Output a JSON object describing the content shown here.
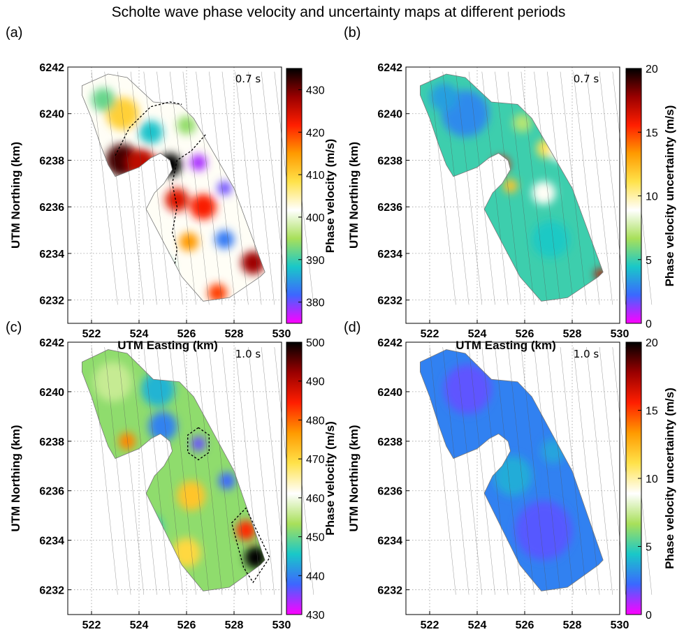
{
  "title": "Scholte wave phase velocity and uncertainty maps at different periods",
  "colors": {
    "velocity_scale": [
      "#ff00ff",
      "#3d66ff",
      "#19c8c8",
      "#a8e05a",
      "#ffffff",
      "#ffe24a",
      "#ff9a00",
      "#ff1e00",
      "#9a0000",
      "#000000"
    ],
    "uncertainty_scale": [
      "#ff00ff",
      "#3a68ff",
      "#19c8c8",
      "#a8e05a",
      "#ffffff",
      "#ffe24a",
      "#ff9a00",
      "#ff1e00",
      "#9a0000",
      "#000000"
    ],
    "grid": "#9a9a9a"
  },
  "chart_data": [
    {
      "type": "heatmap",
      "panel_label": "(a)",
      "period": "0.7 s",
      "xlabel": "UTM Easting (km)",
      "ylabel": "UTM Northing (km)",
      "xlim": [
        521,
        530
      ],
      "ylim": [
        6231,
        6242
      ],
      "xticks": [
        522,
        524,
        526,
        528,
        530
      ],
      "yticks": [
        6232,
        6234,
        6236,
        6238,
        6240,
        6242
      ],
      "colorbar": {
        "label": "Phase velocity (m/s)",
        "range": [
          375,
          435
        ],
        "ticks": [
          380,
          390,
          400,
          410,
          420,
          430
        ]
      },
      "background": 402,
      "blobs": [
        {
          "x": 523.3,
          "y": 6238.0,
          "r": 0.7,
          "v": 432
        },
        {
          "x": 524.1,
          "y": 6237.9,
          "r": 0.6,
          "v": 426
        },
        {
          "x": 525.3,
          "y": 6237.8,
          "r": 0.5,
          "v": 440
        },
        {
          "x": 526.5,
          "y": 6237.9,
          "r": 0.35,
          "v": 378
        },
        {
          "x": 527.6,
          "y": 6236.8,
          "r": 0.3,
          "v": 380
        },
        {
          "x": 526.7,
          "y": 6236.0,
          "r": 0.55,
          "v": 422
        },
        {
          "x": 525.6,
          "y": 6236.3,
          "r": 0.5,
          "v": 424
        },
        {
          "x": 528.8,
          "y": 6233.6,
          "r": 0.5,
          "v": 428
        },
        {
          "x": 527.6,
          "y": 6234.6,
          "r": 0.4,
          "v": 383
        },
        {
          "x": 523.3,
          "y": 6240.0,
          "r": 0.7,
          "v": 410
        },
        {
          "x": 522.5,
          "y": 6240.6,
          "r": 0.5,
          "v": 392
        },
        {
          "x": 524.5,
          "y": 6239.2,
          "r": 0.5,
          "v": 388
        },
        {
          "x": 526.0,
          "y": 6239.5,
          "r": 0.4,
          "v": 394
        },
        {
          "x": 524.8,
          "y": 6233.3,
          "r": 0.6,
          "v": 390
        },
        {
          "x": 527.3,
          "y": 6232.3,
          "r": 0.4,
          "v": 420
        },
        {
          "x": 526.1,
          "y": 6234.5,
          "r": 0.4,
          "v": 415
        }
      ],
      "contours": [
        {
          "closed": false,
          "points": [
            [
              523.0,
              6238.2
            ],
            [
              523.6,
              6239.4
            ],
            [
              524.5,
              6240.3
            ],
            [
              525.3,
              6240.5
            ],
            [
              525.8,
              6240.4
            ]
          ]
        },
        {
          "closed": false,
          "points": [
            [
              526.8,
              6239.1
            ],
            [
              526.2,
              6238.4
            ],
            [
              525.6,
              6238.0
            ],
            [
              525.4,
              6237.0
            ],
            [
              525.6,
              6236.0
            ],
            [
              525.4,
              6234.9
            ],
            [
              525.6,
              6234.2
            ],
            [
              525.5,
              6233.5
            ]
          ]
        }
      ]
    },
    {
      "type": "heatmap",
      "panel_label": "(b)",
      "period": "0.7 s",
      "xlabel": "UTM Easting (km)",
      "ylabel": "UTM Northing (km)",
      "xlim": [
        521,
        530
      ],
      "ylim": [
        6231,
        6242
      ],
      "xticks": [
        522,
        524,
        526,
        528,
        530
      ],
      "yticks": [
        6232,
        6234,
        6236,
        6238,
        6240,
        6242
      ],
      "colorbar": {
        "label": "Phase velocity uncertainty (m/s)",
        "range": [
          0,
          20
        ],
        "ticks": [
          0,
          5,
          10,
          15,
          20
        ]
      },
      "background": 5,
      "blobs": [
        {
          "x": 523.5,
          "y": 6240.0,
          "r": 1.0,
          "v": 3
        },
        {
          "x": 522.6,
          "y": 6240.7,
          "r": 0.6,
          "v": 3.5
        },
        {
          "x": 525.0,
          "y": 6237.8,
          "r": 0.35,
          "v": 16
        },
        {
          "x": 525.4,
          "y": 6236.9,
          "r": 0.3,
          "v": 12
        },
        {
          "x": 526.9,
          "y": 6238.5,
          "r": 0.4,
          "v": 11
        },
        {
          "x": 527.4,
          "y": 6238.3,
          "r": 0.35,
          "v": 9
        },
        {
          "x": 526.8,
          "y": 6236.6,
          "r": 0.5,
          "v": 9
        },
        {
          "x": 529.2,
          "y": 6233.1,
          "r": 0.25,
          "v": 17
        },
        {
          "x": 527.1,
          "y": 6234.6,
          "r": 0.8,
          "v": 4.5
        },
        {
          "x": 525.9,
          "y": 6239.6,
          "r": 0.4,
          "v": 7
        }
      ],
      "contours": []
    },
    {
      "type": "heatmap",
      "panel_label": "(c)",
      "period": "1.0 s",
      "xlabel": "UTM Easting (km)",
      "ylabel": "UTM Northing (km)",
      "xlim": [
        521,
        530
      ],
      "ylim": [
        6231,
        6242
      ],
      "xticks": [
        522,
        524,
        526,
        528,
        530
      ],
      "yticks": [
        6232,
        6234,
        6236,
        6238,
        6240,
        6242
      ],
      "colorbar": {
        "label": "Phase velocity (m/s)",
        "range": [
          430,
          500
        ],
        "ticks": [
          430,
          440,
          450,
          460,
          470,
          480,
          490,
          500
        ]
      },
      "background": 452,
      "blobs": [
        {
          "x": 528.9,
          "y": 6233.3,
          "r": 0.45,
          "v": 500
        },
        {
          "x": 528.5,
          "y": 6234.4,
          "r": 0.4,
          "v": 484
        },
        {
          "x": 526.5,
          "y": 6237.9,
          "r": 0.3,
          "v": 436
        },
        {
          "x": 523.5,
          "y": 6238.0,
          "r": 0.35,
          "v": 478
        },
        {
          "x": 526.2,
          "y": 6235.8,
          "r": 0.6,
          "v": 472
        },
        {
          "x": 526.0,
          "y": 6233.5,
          "r": 0.6,
          "v": 470
        },
        {
          "x": 524.3,
          "y": 6232.9,
          "r": 0.4,
          "v": 472
        },
        {
          "x": 522.9,
          "y": 6240.4,
          "r": 0.8,
          "v": 456
        },
        {
          "x": 524.8,
          "y": 6240.1,
          "r": 0.7,
          "v": 444
        },
        {
          "x": 525.0,
          "y": 6238.6,
          "r": 0.6,
          "v": 440
        },
        {
          "x": 527.7,
          "y": 6236.4,
          "r": 0.35,
          "v": 438
        },
        {
          "x": 524.5,
          "y": 6234.5,
          "r": 0.5,
          "v": 446
        }
      ],
      "contours": [
        {
          "closed": true,
          "points": [
            [
              526.5,
              6238.55
            ],
            [
              526.95,
              6238.25
            ],
            [
              526.95,
              6237.55
            ],
            [
              526.5,
              6237.25
            ],
            [
              526.05,
              6237.55
            ],
            [
              526.05,
              6238.25
            ]
          ]
        },
        {
          "closed": true,
          "points": [
            [
              527.9,
              6234.7
            ],
            [
              528.5,
              6235.3
            ],
            [
              529.5,
              6233.3
            ],
            [
              528.8,
              6232.3
            ],
            [
              528.4,
              6232.9
            ]
          ]
        }
      ]
    },
    {
      "type": "heatmap",
      "panel_label": "(d)",
      "period": "1.0 s",
      "xlabel": "UTM Easting (km)",
      "ylabel": "UTM Northing (km)",
      "xlim": [
        521,
        530
      ],
      "ylim": [
        6231,
        6242
      ],
      "xticks": [
        522,
        524,
        526,
        528,
        530
      ],
      "yticks": [
        6232,
        6234,
        6236,
        6238,
        6240,
        6242
      ],
      "colorbar": {
        "label": "Phase velocity uncertainty (m/s)",
        "range": [
          0,
          20
        ],
        "ticks": [
          0,
          5,
          10,
          15,
          20
        ]
      },
      "background": 2.8,
      "blobs": [
        {
          "x": 523.6,
          "y": 6240.1,
          "r": 1.0,
          "v": 1.8
        },
        {
          "x": 526.8,
          "y": 6234.4,
          "r": 1.2,
          "v": 1.9
        },
        {
          "x": 525.5,
          "y": 6236.6,
          "r": 0.8,
          "v": 3.8
        },
        {
          "x": 527.2,
          "y": 6237.6,
          "r": 0.5,
          "v": 3.6
        }
      ],
      "contours": []
    }
  ]
}
